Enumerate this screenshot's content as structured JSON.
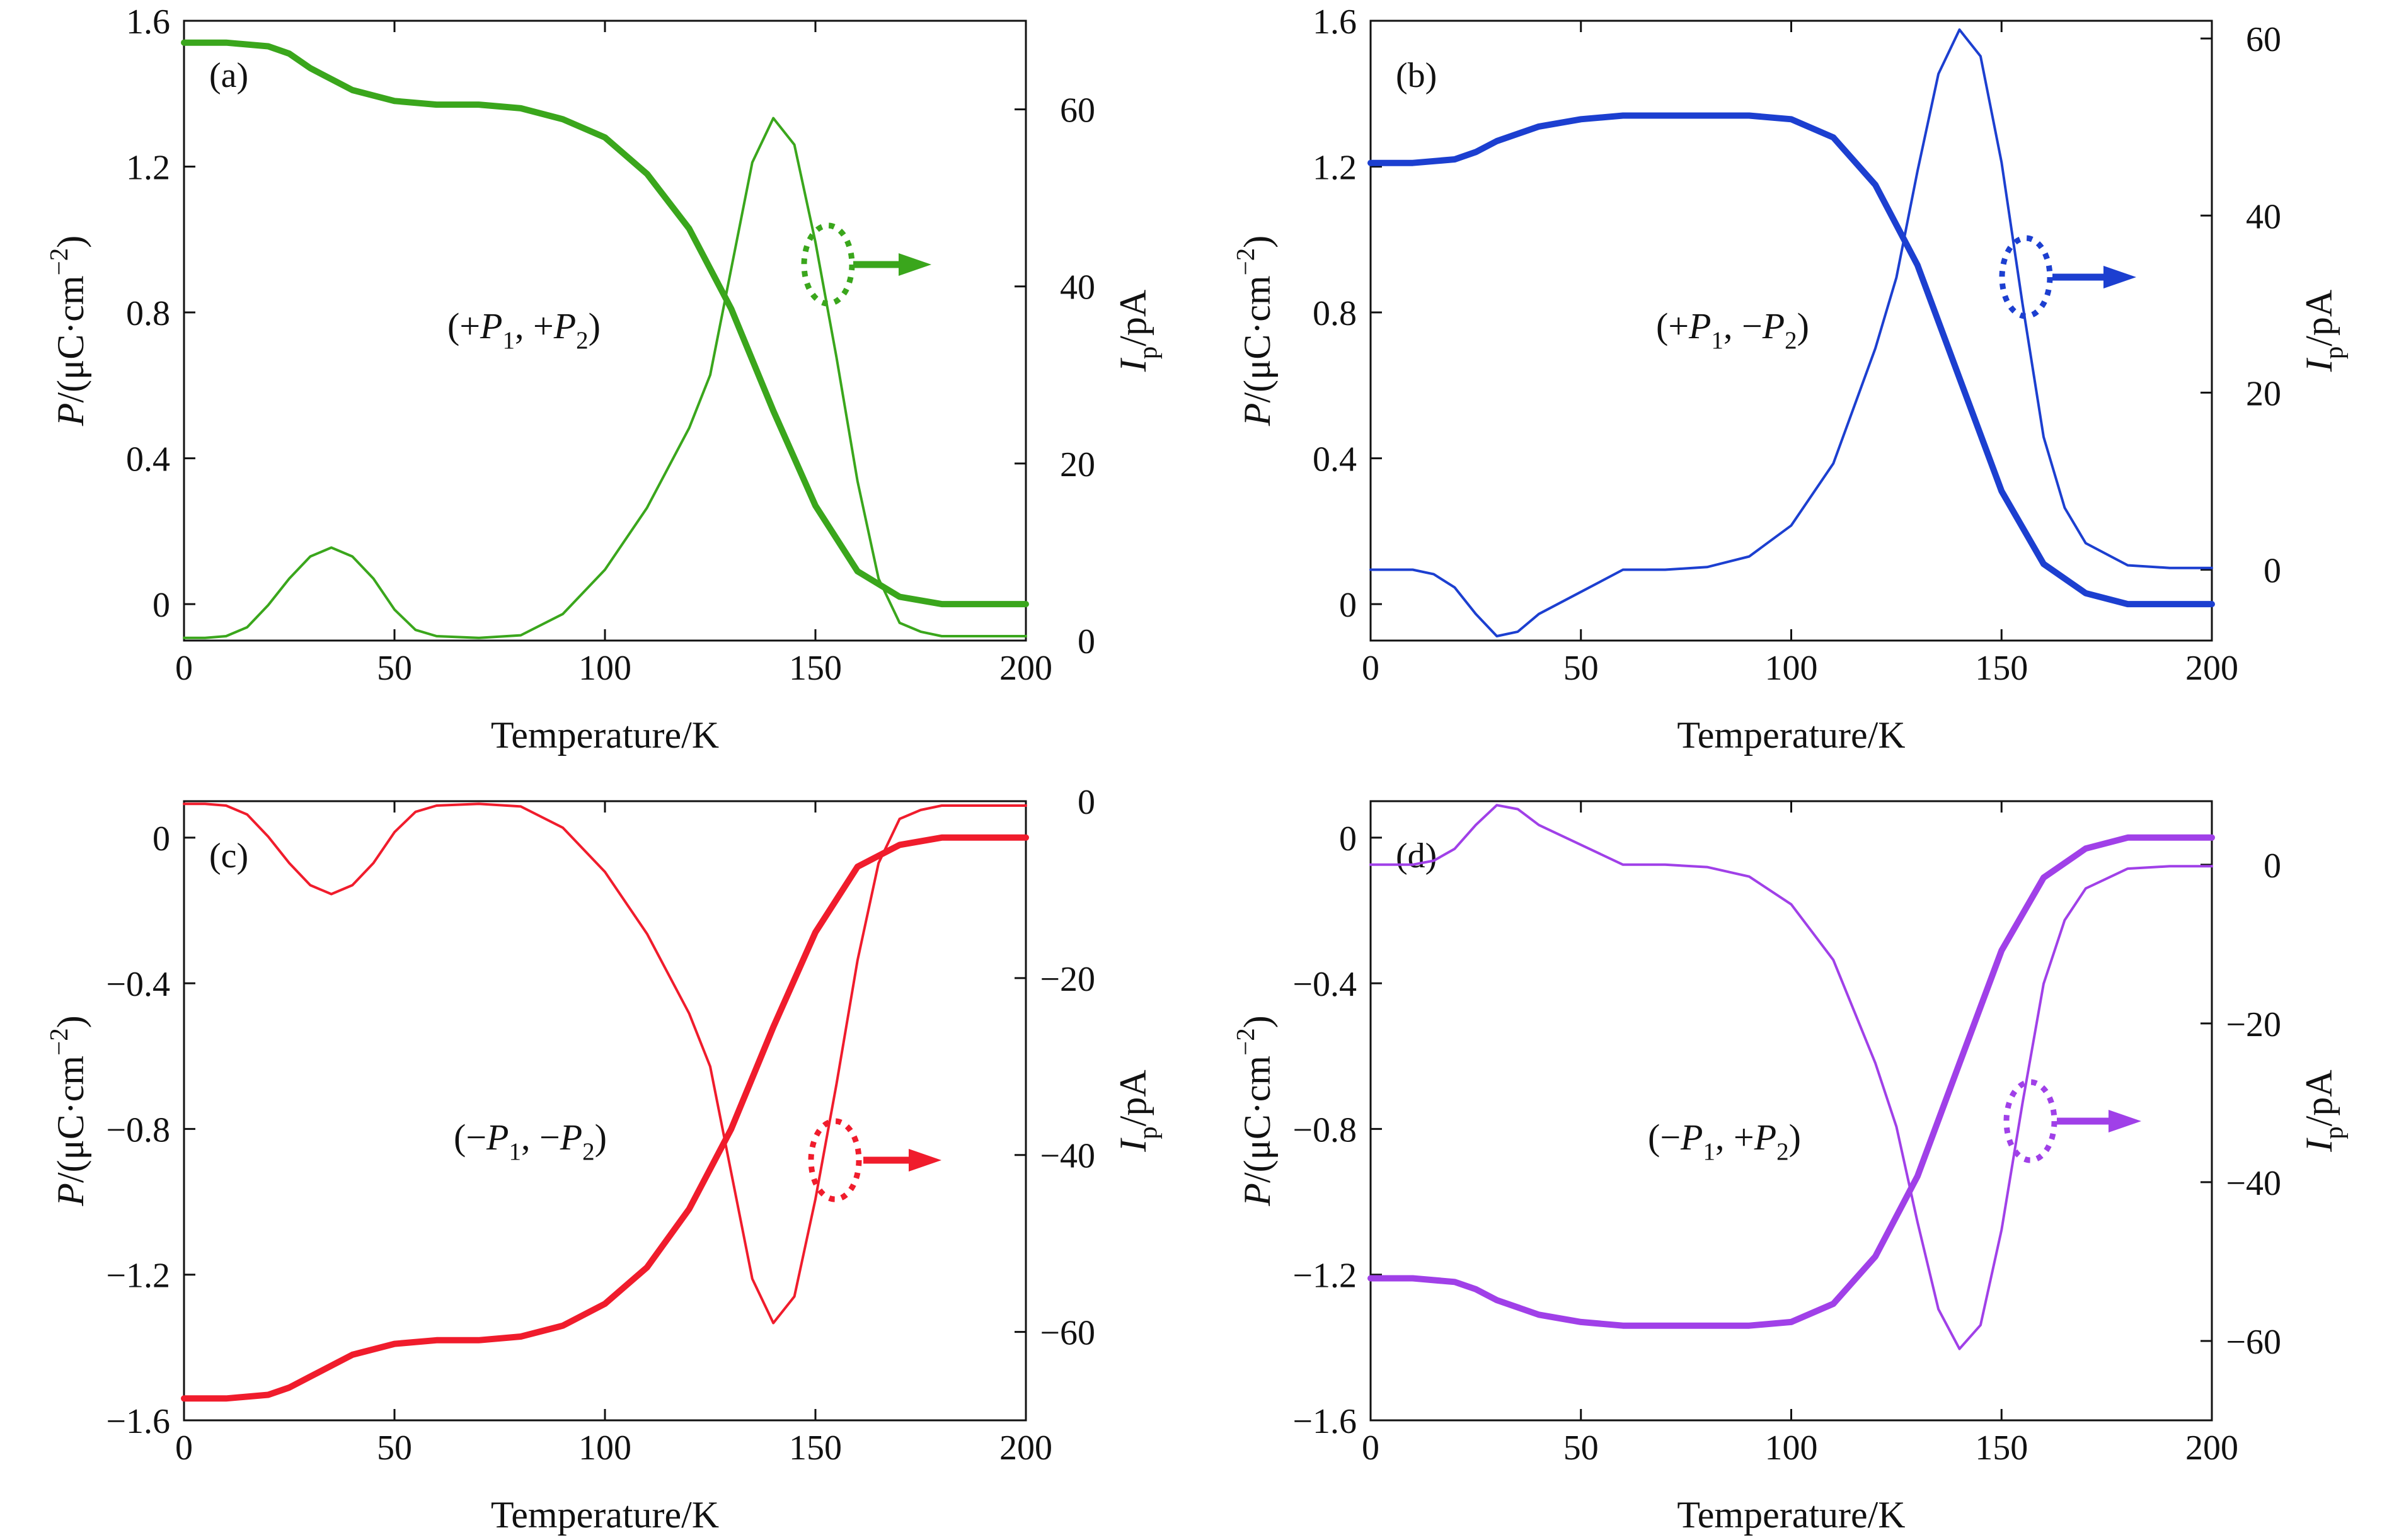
{
  "chart_data": [
    {
      "type": "line",
      "panel_label": "(a)",
      "annotation": {
        "parts": [
          {
            "text": "(+",
            "sub": false
          },
          {
            "text": "P",
            "italic": true
          },
          {
            "text": "1",
            "sub": true
          },
          {
            "text": ", +",
            "sub": false
          },
          {
            "text": "P",
            "italic": true
          },
          {
            "text": "2",
            "sub": true
          },
          {
            "text": ")",
            "sub": false
          }
        ]
      },
      "color": "#3aa61c",
      "xlim": [
        0,
        200
      ],
      "ylim": [
        -0.1,
        1.6
      ],
      "y2lim": [
        0,
        70
      ],
      "xticks": [
        0,
        50,
        100,
        150,
        200
      ],
      "yticks": [
        0,
        0.4,
        0.8,
        1.2,
        1.6
      ],
      "yticklabels": [
        "0",
        "0.4",
        "0.8",
        "1.2",
        "1.6"
      ],
      "y2ticks": [
        0,
        20,
        40,
        60
      ],
      "y2ticklabels": [
        "0",
        "20",
        "40",
        "60"
      ],
      "xlabel": "Temperature/K",
      "ylabel": {
        "parts": [
          {
            "text": "P",
            "italic": true
          },
          {
            "text": "/(μC·cm"
          },
          {
            "text": "−2",
            "sup": true
          },
          {
            "text": ")"
          }
        ]
      },
      "y2label": {
        "parts": [
          {
            "text": "I",
            "italic": true
          },
          {
            "text": "p",
            "sub": true
          },
          {
            "text": "/pA"
          }
        ]
      },
      "series": [
        {
          "axis": "left",
          "x": [
            0,
            10,
            20,
            25,
            30,
            40,
            50,
            60,
            70,
            80,
            90,
            100,
            110,
            120,
            130,
            140,
            150,
            160,
            170,
            180,
            190,
            200
          ],
          "y": [
            1.54,
            1.54,
            1.53,
            1.51,
            1.47,
            1.41,
            1.38,
            1.37,
            1.37,
            1.36,
            1.33,
            1.28,
            1.18,
            1.03,
            0.81,
            0.53,
            0.27,
            0.09,
            0.02,
            0.0,
            0.0,
            0.0
          ]
        },
        {
          "axis": "right",
          "x": [
            0,
            5,
            10,
            15,
            20,
            25,
            30,
            35,
            40,
            45,
            50,
            55,
            60,
            70,
            80,
            90,
            100,
            110,
            120,
            125,
            130,
            135,
            140,
            145,
            150,
            155,
            160,
            165,
            170,
            175,
            180,
            190,
            200
          ],
          "y": [
            0.3,
            0.3,
            0.5,
            1.5,
            4,
            7,
            9.5,
            10.5,
            9.5,
            7,
            3.5,
            1.2,
            0.5,
            0.3,
            0.6,
            3,
            8,
            15,
            24,
            30,
            42,
            54,
            59,
            56,
            45,
            32,
            18,
            7,
            2,
            1,
            0.5,
            0.5,
            0.5
          ]
        }
      ]
    },
    {
      "type": "line",
      "panel_label": "(b)",
      "annotation": {
        "parts": [
          {
            "text": "(+",
            "sub": false
          },
          {
            "text": "P",
            "italic": true
          },
          {
            "text": "1",
            "sub": true
          },
          {
            "text": ", −",
            "sub": false
          },
          {
            "text": "P",
            "italic": true
          },
          {
            "text": "2",
            "sub": true
          },
          {
            "text": ")",
            "sub": false
          }
        ]
      },
      "color": "#1c3fd0",
      "xlim": [
        0,
        200
      ],
      "ylim": [
        -0.1,
        1.6
      ],
      "y2lim": [
        -8,
        62
      ],
      "xticks": [
        0,
        50,
        100,
        150,
        200
      ],
      "yticks": [
        0,
        0.4,
        0.8,
        1.2,
        1.6
      ],
      "yticklabels": [
        "0",
        "0.4",
        "0.8",
        "1.2",
        "1.6"
      ],
      "y2ticks": [
        0,
        20,
        40,
        60
      ],
      "y2ticklabels": [
        "0",
        "20",
        "40",
        "60"
      ],
      "xlabel": "Temperature/K",
      "ylabel": {
        "parts": [
          {
            "text": "P",
            "italic": true
          },
          {
            "text": "/(μC·cm"
          },
          {
            "text": "−2",
            "sup": true
          },
          {
            "text": ")"
          }
        ]
      },
      "y2label": {
        "parts": [
          {
            "text": "I",
            "italic": true
          },
          {
            "text": "p",
            "sub": true
          },
          {
            "text": "/pA"
          }
        ]
      },
      "series": [
        {
          "axis": "left",
          "x": [
            0,
            10,
            20,
            25,
            30,
            40,
            50,
            60,
            70,
            80,
            90,
            100,
            110,
            120,
            130,
            140,
            150,
            160,
            170,
            180,
            190,
            200
          ],
          "y": [
            1.21,
            1.21,
            1.22,
            1.24,
            1.27,
            1.31,
            1.33,
            1.34,
            1.34,
            1.34,
            1.34,
            1.33,
            1.28,
            1.15,
            0.93,
            0.62,
            0.31,
            0.11,
            0.03,
            0.0,
            0.0,
            0.0
          ]
        },
        {
          "axis": "right",
          "x": [
            0,
            10,
            15,
            20,
            25,
            30,
            35,
            40,
            50,
            60,
            70,
            80,
            90,
            100,
            110,
            120,
            125,
            130,
            135,
            140,
            145,
            150,
            155,
            160,
            165,
            170,
            180,
            190,
            200
          ],
          "y": [
            0,
            0,
            -0.5,
            -2,
            -5,
            -7.5,
            -7,
            -5,
            -2.5,
            0,
            0,
            0.3,
            1.5,
            5,
            12,
            25,
            33,
            45,
            56,
            61,
            58,
            46,
            30,
            15,
            7,
            3,
            0.5,
            0.2,
            0.2
          ]
        }
      ]
    },
    {
      "type": "line",
      "panel_label": "(c)",
      "annotation": {
        "parts": [
          {
            "text": "(−",
            "sub": false
          },
          {
            "text": "P",
            "italic": true
          },
          {
            "text": "1",
            "sub": true
          },
          {
            "text": ", −",
            "sub": false
          },
          {
            "text": "P",
            "italic": true
          },
          {
            "text": "2",
            "sub": true
          },
          {
            "text": ")",
            "sub": false
          }
        ]
      },
      "color": "#f01c2c",
      "xlim": [
        0,
        200
      ],
      "ylim": [
        -1.6,
        0.1
      ],
      "y2lim": [
        -70,
        0
      ],
      "xticks": [
        0,
        50,
        100,
        150,
        200
      ],
      "yticks": [
        -1.6,
        -1.2,
        -0.8,
        -0.4,
        0
      ],
      "yticklabels": [
        "−1.6",
        "−1.2",
        "−0.8",
        "−0.4",
        "0"
      ],
      "y2ticks": [
        -60,
        -40,
        -20,
        0
      ],
      "y2ticklabels": [
        "−60",
        "−40",
        "−20",
        "0"
      ],
      "xlabel": "Temperature/K",
      "ylabel": {
        "parts": [
          {
            "text": "P",
            "italic": true
          },
          {
            "text": "/(μC·cm"
          },
          {
            "text": "−2",
            "sup": true
          },
          {
            "text": ")"
          }
        ]
      },
      "y2label": {
        "parts": [
          {
            "text": "I",
            "italic": true
          },
          {
            "text": "p",
            "sub": true
          },
          {
            "text": "/pA"
          }
        ]
      },
      "series": [
        {
          "axis": "left",
          "x": [
            0,
            10,
            20,
            25,
            30,
            40,
            50,
            60,
            70,
            80,
            90,
            100,
            110,
            120,
            130,
            140,
            150,
            160,
            170,
            180,
            190,
            200
          ],
          "y": [
            -1.54,
            -1.54,
            -1.53,
            -1.51,
            -1.48,
            -1.42,
            -1.39,
            -1.38,
            -1.38,
            -1.37,
            -1.34,
            -1.28,
            -1.18,
            -1.02,
            -0.8,
            -0.52,
            -0.26,
            -0.08,
            -0.02,
            0.0,
            0.0,
            0.0
          ]
        },
        {
          "axis": "right",
          "x": [
            0,
            5,
            10,
            15,
            20,
            25,
            30,
            35,
            40,
            45,
            50,
            55,
            60,
            70,
            80,
            90,
            100,
            110,
            120,
            125,
            130,
            135,
            140,
            145,
            150,
            155,
            160,
            165,
            170,
            175,
            180,
            190,
            200
          ],
          "y": [
            -0.3,
            -0.3,
            -0.5,
            -1.5,
            -4,
            -7,
            -9.5,
            -10.5,
            -9.5,
            -7,
            -3.5,
            -1.2,
            -0.5,
            -0.3,
            -0.6,
            -3,
            -8,
            -15,
            -24,
            -30,
            -42,
            -54,
            -59,
            -56,
            -45,
            -32,
            -18,
            -7,
            -2,
            -1,
            -0.5,
            -0.5,
            -0.5
          ]
        }
      ]
    },
    {
      "type": "line",
      "panel_label": "(d)",
      "annotation": {
        "parts": [
          {
            "text": "(−",
            "sub": false
          },
          {
            "text": "P",
            "italic": true
          },
          {
            "text": "1",
            "sub": true
          },
          {
            "text": ", +",
            "sub": false
          },
          {
            "text": "P",
            "italic": true
          },
          {
            "text": "2",
            "sub": true
          },
          {
            "text": ")",
            "sub": false
          }
        ]
      },
      "color": "#a040e8",
      "xlim": [
        0,
        200
      ],
      "ylim": [
        -1.6,
        0.1
      ],
      "y2lim": [
        -70,
        8
      ],
      "xticks": [
        0,
        50,
        100,
        150,
        200
      ],
      "yticks": [
        -1.6,
        -1.2,
        -0.8,
        -0.4,
        0
      ],
      "yticklabels": [
        "−1.6",
        "−1.2",
        "−0.8",
        "−0.4",
        "0"
      ],
      "y2ticks": [
        -60,
        -40,
        -20,
        0
      ],
      "y2ticklabels": [
        "−60",
        "−40",
        "−20",
        "0"
      ],
      "xlabel": "Temperature/K",
      "ylabel": {
        "parts": [
          {
            "text": "P",
            "italic": true
          },
          {
            "text": "/(μC·cm"
          },
          {
            "text": "−2",
            "sup": true
          },
          {
            "text": ")"
          }
        ]
      },
      "y2label": {
        "parts": [
          {
            "text": "I",
            "italic": true
          },
          {
            "text": "p",
            "sub": true
          },
          {
            "text": "/pA"
          }
        ]
      },
      "series": [
        {
          "axis": "left",
          "x": [
            0,
            10,
            20,
            25,
            30,
            40,
            50,
            60,
            70,
            80,
            90,
            100,
            110,
            120,
            130,
            140,
            150,
            160,
            170,
            180,
            190,
            200
          ],
          "y": [
            -1.21,
            -1.21,
            -1.22,
            -1.24,
            -1.27,
            -1.31,
            -1.33,
            -1.34,
            -1.34,
            -1.34,
            -1.34,
            -1.33,
            -1.28,
            -1.15,
            -0.93,
            -0.62,
            -0.31,
            -0.11,
            -0.03,
            0.0,
            0.0,
            0.0
          ]
        },
        {
          "axis": "right",
          "x": [
            0,
            10,
            15,
            20,
            25,
            30,
            35,
            40,
            50,
            60,
            70,
            80,
            90,
            100,
            110,
            120,
            125,
            130,
            135,
            140,
            145,
            150,
            155,
            160,
            165,
            170,
            180,
            190,
            200
          ],
          "y": [
            0,
            0,
            0.5,
            2,
            5,
            7.5,
            7,
            5,
            2.5,
            0,
            0,
            -0.3,
            -1.5,
            -5,
            -12,
            -25,
            -33,
            -45,
            -56,
            -61,
            -58,
            -46,
            -30,
            -15,
            -7,
            -3,
            -0.5,
            -0.2,
            -0.2
          ]
        }
      ]
    }
  ]
}
